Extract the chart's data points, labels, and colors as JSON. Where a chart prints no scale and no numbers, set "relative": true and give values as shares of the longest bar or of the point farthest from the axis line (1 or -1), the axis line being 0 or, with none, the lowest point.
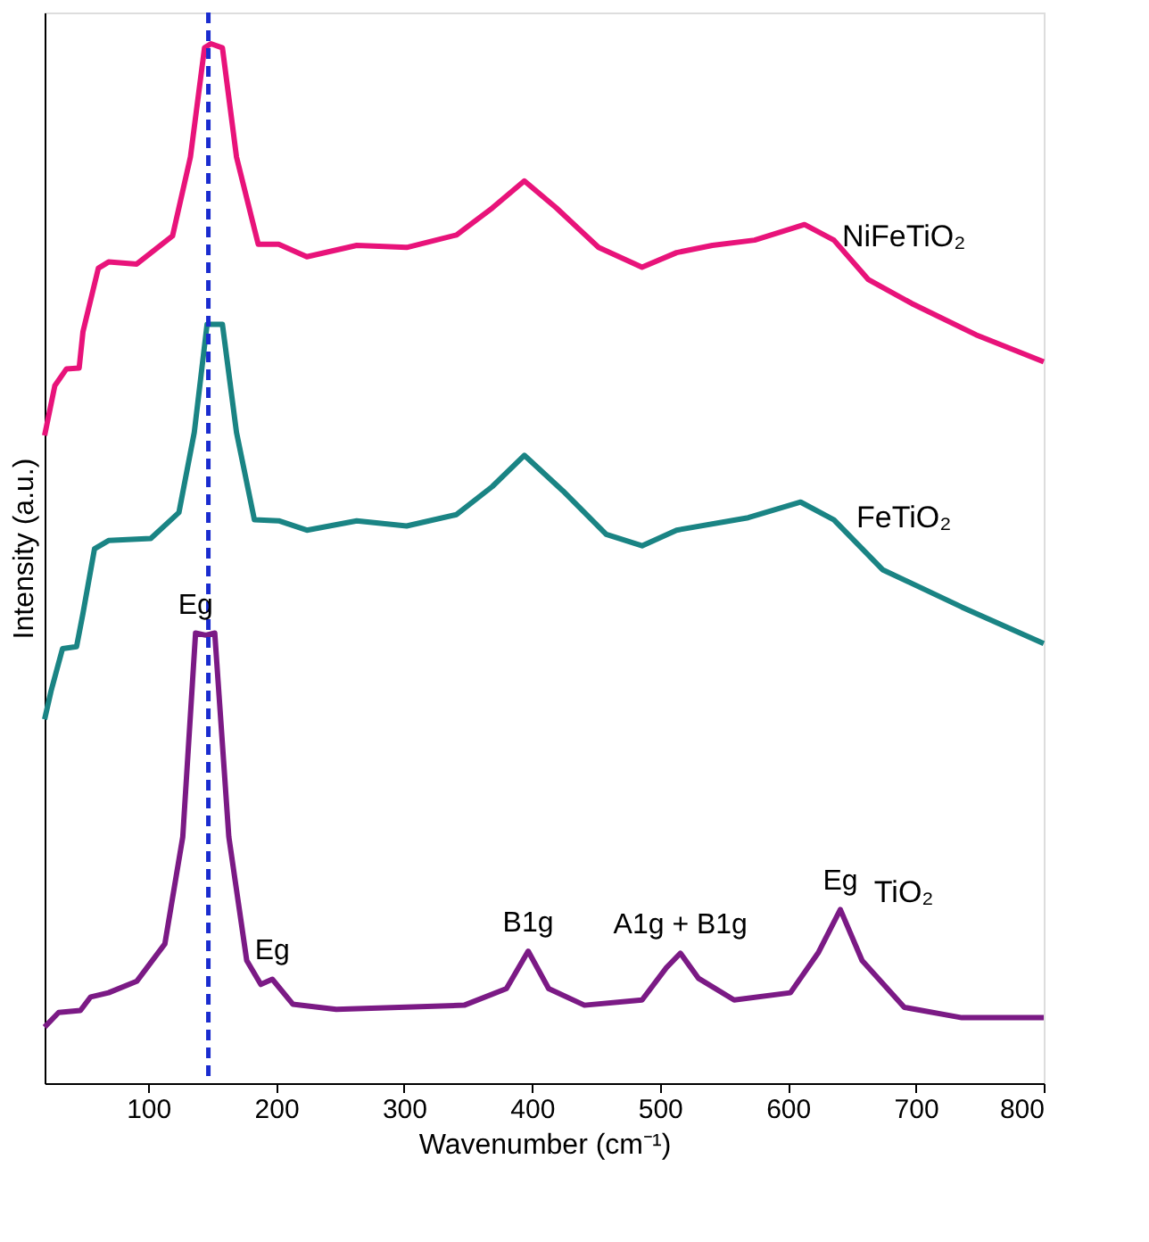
{
  "chart_data": {
    "type": "line",
    "relative": true,
    "xlabel": "Wavenumber (cm⁻¹)",
    "ylabel": "Intensity (a.u.)",
    "xlim": [
      19,
      800
    ],
    "xticks": [
      100,
      200,
      300,
      400,
      500,
      600,
      700,
      800
    ],
    "line_style": "solid",
    "marker": "none",
    "series": [
      {
        "name": "NiFeTiO₂",
        "color": "#e8137a",
        "x": [
          19,
          27,
          36,
          46,
          49,
          61,
          69,
          91,
          119,
          133,
          144,
          149,
          158,
          169,
          186,
          202,
          224,
          263,
          302,
          341,
          369,
          394,
          419,
          452,
          486,
          513,
          541,
          574,
          613,
          636,
          663,
          697,
          747,
          800
        ],
        "values": [
          0.623,
          0.671,
          0.687,
          0.688,
          0.723,
          0.784,
          0.79,
          0.788,
          0.815,
          0.891,
          0.996,
          1.0,
          0.996,
          0.891,
          0.807,
          0.807,
          0.795,
          0.806,
          0.804,
          0.816,
          0.842,
          0.868,
          0.842,
          0.804,
          0.785,
          0.799,
          0.806,
          0.811,
          0.826,
          0.811,
          0.773,
          0.75,
          0.72,
          0.694
        ]
      },
      {
        "name": "FeTiO₂",
        "color": "#1a8484",
        "x": [
          19,
          24,
          33,
          44,
          49,
          58,
          69,
          102,
          124,
          136,
          146,
          158,
          169,
          183,
          202,
          224,
          263,
          302,
          341,
          369,
          394,
          424,
          458,
          486,
          513,
          569,
          610,
          636,
          674,
          736,
          800
        ],
        "values": [
          0.35,
          0.377,
          0.418,
          0.42,
          0.452,
          0.514,
          0.522,
          0.524,
          0.549,
          0.626,
          0.73,
          0.73,
          0.626,
          0.542,
          0.541,
          0.532,
          0.541,
          0.536,
          0.547,
          0.574,
          0.604,
          0.57,
          0.528,
          0.517,
          0.532,
          0.544,
          0.559,
          0.542,
          0.494,
          0.458,
          0.423
        ]
      },
      {
        "name": "TiO₂",
        "color": "#7b1a85",
        "x": [
          19,
          30,
          47,
          55,
          69,
          91,
          113,
          127,
          137,
          145,
          152,
          163,
          177,
          188,
          197,
          213,
          247,
          347,
          380,
          397,
          413,
          441,
          486,
          505,
          516,
          530,
          558,
          602,
          624,
          641,
          658,
          691,
          736,
          800
        ],
        "values": [
          0.054,
          0.068,
          0.07,
          0.083,
          0.087,
          0.098,
          0.134,
          0.237,
          0.433,
          0.431,
          0.433,
          0.237,
          0.118,
          0.095,
          0.1,
          0.076,
          0.071,
          0.075,
          0.091,
          0.127,
          0.091,
          0.075,
          0.08,
          0.111,
          0.125,
          0.101,
          0.08,
          0.087,
          0.126,
          0.167,
          0.118,
          0.073,
          0.063,
          0.063
        ]
      }
    ],
    "ref_lines": [
      {
        "axis": "x",
        "value": 147,
        "color": "#1a2ccf",
        "line_style": "dashed"
      }
    ],
    "annotations": [
      {
        "text": "Eg",
        "x": 137,
        "y": 0.433
      },
      {
        "text": "Eg",
        "x": 197,
        "y": 0.1
      },
      {
        "text": "B1g",
        "x": 397,
        "y": 0.127
      },
      {
        "text": "A1g + B1g",
        "x": 516,
        "y": 0.125
      },
      {
        "text": "Eg",
        "x": 641,
        "y": 0.167
      }
    ]
  }
}
